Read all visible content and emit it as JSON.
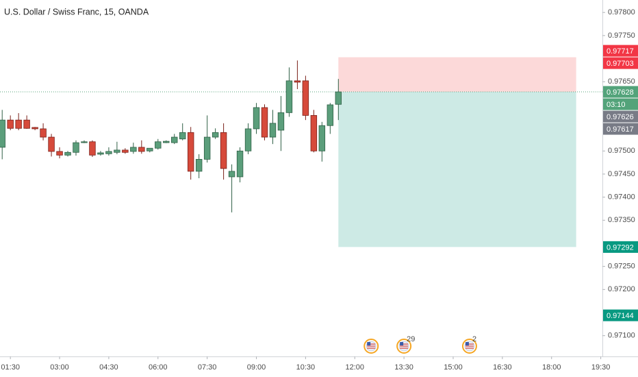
{
  "chart_data": {
    "type": "candlestick",
    "title": "U.S. Dollar / Swiss Franc, 15, OANDA",
    "x": [
      "01:15",
      "01:30",
      "01:45",
      "02:00",
      "02:15",
      "02:30",
      "02:45",
      "03:00",
      "03:15",
      "03:30",
      "03:45",
      "04:00",
      "04:15",
      "04:30",
      "04:45",
      "05:00",
      "05:15",
      "05:30",
      "05:45",
      "06:00",
      "06:15",
      "06:30",
      "06:45",
      "07:00",
      "07:15",
      "07:30",
      "07:45",
      "08:00",
      "08:15",
      "08:30",
      "08:45",
      "09:00",
      "09:15",
      "09:30",
      "09:45",
      "10:00",
      "10:15",
      "10:30",
      "10:45",
      "11:00",
      "11:15",
      "11:30"
    ],
    "open": [
      0.97508,
      0.97567,
      0.97567,
      0.97567,
      0.97551,
      0.97548,
      0.9753,
      0.97499,
      0.97491,
      0.97497,
      0.97518,
      0.9752,
      0.97493,
      0.97494,
      0.97497,
      0.97502,
      0.97499,
      0.97508,
      0.975,
      0.97506,
      0.97518,
      0.97518,
      0.97526,
      0.9754,
      0.97456,
      0.97482,
      0.9753,
      0.9754,
      0.97444,
      0.97444,
      0.975,
      0.97548,
      0.97594,
      0.9753,
      0.97545,
      0.97583,
      0.97652,
      0.97652,
      0.97577,
      0.975,
      0.97555,
      0.97601
    ],
    "high": [
      0.97589,
      0.97577,
      0.97582,
      0.97577,
      0.97552,
      0.9756,
      0.97537,
      0.97508,
      0.975,
      0.97523,
      0.97523,
      0.97523,
      0.975,
      0.97508,
      0.9752,
      0.97506,
      0.97518,
      0.97523,
      0.97506,
      0.97526,
      0.97523,
      0.97537,
      0.9756,
      0.97552,
      0.97493,
      0.97577,
      0.97549,
      0.9756,
      0.97471,
      0.97508,
      0.9756,
      0.97604,
      0.97601,
      0.97589,
      0.97619,
      0.97681,
      0.97696,
      0.97663,
      0.97589,
      0.97563,
      0.97604,
      0.97656
    ],
    "low": [
      0.97482,
      0.97545,
      0.97545,
      0.97548,
      0.97545,
      0.97523,
      0.97488,
      0.97484,
      0.97488,
      0.9749,
      0.97517,
      0.97487,
      0.9749,
      0.9749,
      0.97493,
      0.97494,
      0.97494,
      0.97494,
      0.97497,
      0.97503,
      0.97517,
      0.97515,
      0.97523,
      0.97438,
      0.97441,
      0.97475,
      0.97526,
      0.97438,
      0.97367,
      0.97432,
      0.97493,
      0.97537,
      0.97523,
      0.97515,
      0.975,
      0.97574,
      0.97634,
      0.97567,
      0.97497,
      0.97477,
      0.97537,
      0.97567
    ],
    "close": [
      0.97567,
      0.97549,
      0.97549,
      0.97549,
      0.97548,
      0.9753,
      0.97499,
      0.97491,
      0.97497,
      0.97518,
      0.9752,
      0.97491,
      0.97496,
      0.97499,
      0.97502,
      0.97497,
      0.97508,
      0.97499,
      0.97506,
      0.9752,
      0.97521,
      0.9753,
      0.9754,
      0.97456,
      0.97482,
      0.9753,
      0.9754,
      0.97462,
      0.97456,
      0.975,
      0.97548,
      0.97594,
      0.9753,
      0.9756,
      0.97583,
      0.97652,
      0.97649,
      0.97577,
      0.975,
      0.97555,
      0.976,
      0.97628
    ],
    "up_color": "#5b9e7b",
    "up_border": "#2e5f45",
    "down_color": "#d64a3b",
    "down_border": "#7a1f18",
    "xlim": [
      "01:11",
      "19:33"
    ],
    "xticks": [
      "01:30",
      "03:00",
      "04:30",
      "06:00",
      "07:30",
      "09:00",
      "10:30",
      "12:00",
      "13:30",
      "15:00",
      "16:30",
      "18:00",
      "19:30"
    ],
    "ylim": [
      0.97055,
      0.97827
    ],
    "yticks": [
      {
        "value": 0.978,
        "label": "0.97800"
      },
      {
        "value": 0.9775,
        "label": "0.97750"
      },
      {
        "value": 0.9765,
        "label": "0.97650"
      },
      {
        "value": 0.975,
        "label": "0.97500"
      },
      {
        "value": 0.9745,
        "label": "0.97450"
      },
      {
        "value": 0.974,
        "label": "0.97400"
      },
      {
        "value": 0.9735,
        "label": "0.97350"
      },
      {
        "value": 0.9725,
        "label": "0.97250"
      },
      {
        "value": 0.972,
        "label": "0.97200"
      },
      {
        "value": 0.971,
        "label": "0.97100"
      }
    ],
    "grid": false,
    "position": {
      "x_range": [
        "11:30",
        "18:45"
      ],
      "stop": 0.97703,
      "entry": 0.97628,
      "target": 0.97292,
      "stop_color": "#fcd9d9",
      "target_color": "#cdeae5"
    },
    "last_price": {
      "value": 0.97628,
      "color": "#53a37a",
      "countdown": "03:10"
    },
    "price_labels": [
      {
        "value": 0.97717,
        "label": "0.97717",
        "color": "#f23645"
      },
      {
        "value": 0.97703,
        "label": "0.97703",
        "color": "#f23645"
      },
      {
        "value": 0.97628,
        "label": "0.97628",
        "color": "#53a37a"
      },
      {
        "value": 0.97626,
        "label": "0.97626",
        "color": "#787b86"
      },
      {
        "value": 0.97617,
        "label": "0.97617",
        "color": "#787b86"
      },
      {
        "value": 0.97292,
        "label": "0.97292",
        "color": "#089981"
      },
      {
        "value": 0.97144,
        "label": "0.97144",
        "color": "#089981"
      }
    ],
    "events": [
      {
        "x": "12:30",
        "label": null
      },
      {
        "x": "13:30",
        "label": "29"
      },
      {
        "x": "15:30",
        "label": "2"
      }
    ]
  }
}
